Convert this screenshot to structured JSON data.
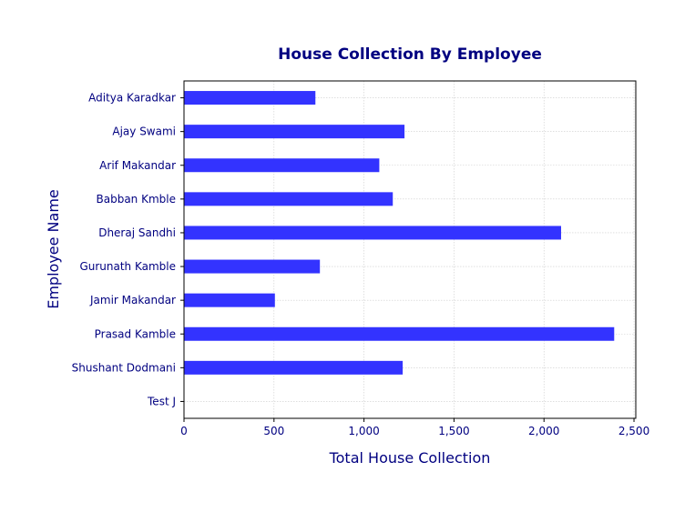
{
  "chart_data": {
    "type": "bar",
    "orientation": "horizontal",
    "title": "House Collection By Employee",
    "xlabel": "Total House Collection",
    "ylabel": "Employee Name",
    "categories": [
      "Aditya Karadkar",
      "Ajay Swami",
      "Arif Makandar",
      "Babban Kmble",
      "Dheraj Sandhi",
      "Gurunath Kamble",
      "Jamir Makandar",
      "Prasad Kamble",
      "Shushant Dodmani",
      "Test J"
    ],
    "values": [
      730,
      1225,
      1085,
      1160,
      2095,
      755,
      505,
      2390,
      1215,
      0
    ],
    "xlim": [
      0,
      2510
    ],
    "xticks": [
      0,
      500,
      1000,
      1500,
      2000,
      2500
    ],
    "xtick_labels": [
      "0",
      "500",
      "1,000",
      "1,500",
      "2,000",
      "2,500"
    ],
    "bar_color": "#3333ff",
    "text_color": "#000080",
    "grid": true
  }
}
